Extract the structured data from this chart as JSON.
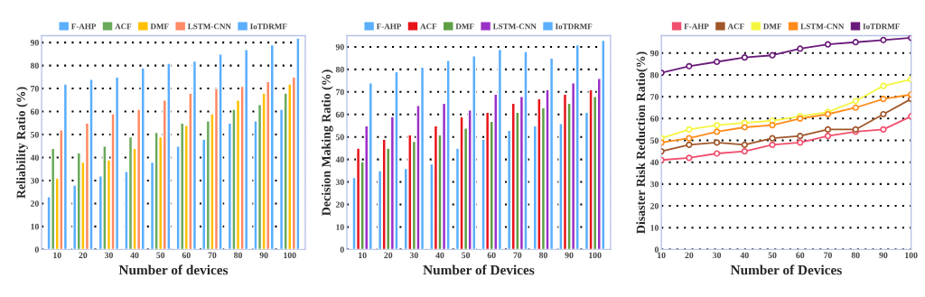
{
  "chart_data": [
    {
      "type": "bar",
      "xlabel": "Number of devices",
      "ylabel": "Reliability Ratio (%)",
      "categories": [
        "10",
        "20",
        "30",
        "40",
        "50",
        "60",
        "70",
        "80",
        "90",
        "100"
      ],
      "ylim": [
        0,
        93
      ],
      "yticks": [
        0,
        10,
        20,
        30,
        40,
        50,
        60,
        70,
        80,
        90
      ],
      "grid": "y",
      "legend": "top",
      "series": [
        {
          "name": "F-AHP",
          "color": "#5aaefc",
          "values": [
            23,
            28,
            32,
            34,
            38,
            45,
            48,
            55,
            56,
            61
          ]
        },
        {
          "name": "ACF",
          "color": "#6aaa5a",
          "values": [
            44,
            42,
            45,
            49,
            51,
            55,
            56,
            61,
            63,
            68
          ]
        },
        {
          "name": "DMF",
          "color": "#ffc000",
          "values": [
            31,
            38,
            39,
            44,
            49,
            54,
            59,
            65,
            68,
            72
          ]
        },
        {
          "name": "LSTM-CNN",
          "color": "#ff8a65",
          "values": [
            52,
            55,
            59,
            61,
            65,
            68,
            70,
            71,
            73,
            75
          ]
        },
        {
          "name": "IoTDRMF",
          "color": "#5aaefc",
          "values": [
            72,
            74,
            75,
            79,
            81,
            82,
            85,
            87,
            89,
            92
          ]
        }
      ]
    },
    {
      "type": "bar",
      "xlabel": "Number of Devices",
      "ylabel": "Decision Making Ratio (%)",
      "categories": [
        "10",
        "20",
        "30",
        "40",
        "50",
        "60",
        "70",
        "80",
        "90",
        "100"
      ],
      "ylim": [
        0,
        95
      ],
      "yticks": [
        0,
        10,
        20,
        30,
        40,
        50,
        60,
        70,
        80,
        90
      ],
      "grid": "y",
      "legend": "top",
      "series": [
        {
          "name": "F-AHP",
          "color": "#5aaefc",
          "values": [
            32,
            35,
            36,
            38,
            45,
            49,
            53,
            55,
            56,
            61
          ]
        },
        {
          "name": "ACF",
          "color": "#e8141a",
          "values": [
            45,
            49,
            51,
            55,
            59,
            61,
            65,
            67,
            69,
            71
          ]
        },
        {
          "name": "DMF",
          "color": "#5f9e45",
          "values": [
            39,
            45,
            48,
            51,
            54,
            57,
            61,
            63,
            65,
            68
          ]
        },
        {
          "name": "LSTM-CNN",
          "color": "#9b30c8",
          "values": [
            55,
            59,
            64,
            65,
            62,
            69,
            68,
            71,
            74,
            76
          ]
        },
        {
          "name": "IoTDRMF",
          "color": "#5aaefc",
          "values": [
            74,
            79,
            81,
            84,
            86,
            89,
            88,
            85,
            91,
            93
          ]
        }
      ]
    },
    {
      "type": "line",
      "xlabel": "Number of Devices",
      "ylabel": "Disaster Risk Reduction Ratio(%)",
      "x": [
        10,
        20,
        30,
        40,
        50,
        60,
        70,
        80,
        90,
        100
      ],
      "xlim": [
        10,
        100
      ],
      "xticks": [
        10,
        20,
        30,
        40,
        50,
        60,
        70,
        80,
        90,
        100
      ],
      "ylim": [
        0,
        98
      ],
      "yticks": [
        0,
        10,
        20,
        30,
        40,
        50,
        60,
        70,
        80,
        90
      ],
      "grid": "y",
      "legend": "top",
      "marker": "circle",
      "series": [
        {
          "name": "F-AHP",
          "color": "#f0506e",
          "values": [
            41,
            42,
            44,
            45,
            48,
            49,
            52,
            54,
            55,
            61
          ]
        },
        {
          "name": "ACF",
          "color": "#a0562a",
          "values": [
            45,
            48,
            49,
            48,
            51,
            52,
            55,
            55,
            62,
            69
          ]
        },
        {
          "name": "DMF",
          "color": "#f5f540",
          "values": [
            51,
            55,
            57,
            58,
            59,
            61,
            63,
            68,
            75,
            78
          ]
        },
        {
          "name": "LSTM-CNN",
          "color": "#ff8c1a",
          "values": [
            49,
            51,
            54,
            56,
            57,
            60,
            62,
            65,
            69,
            71
          ]
        },
        {
          "name": "IoTDRMF",
          "color": "#6a1b7a",
          "values": [
            81,
            84,
            86,
            88,
            89,
            92,
            94,
            95,
            96,
            97
          ]
        }
      ]
    }
  ]
}
